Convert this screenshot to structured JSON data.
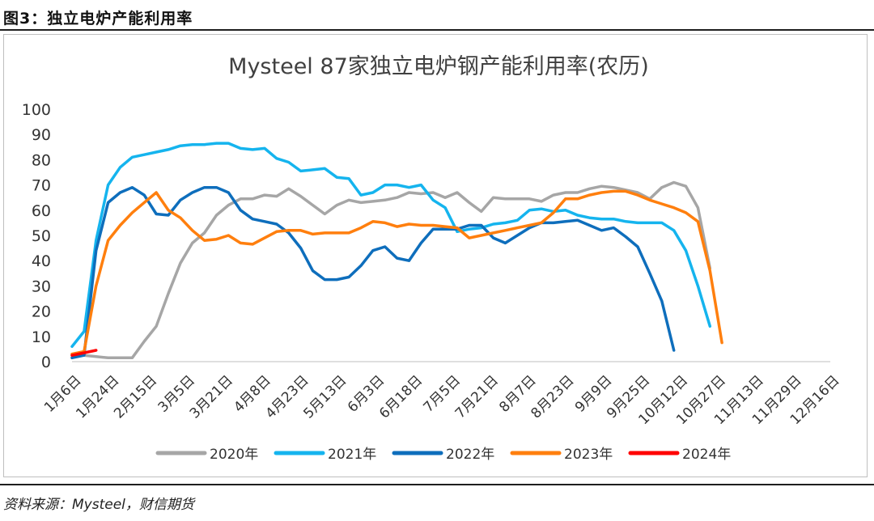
{
  "figure": {
    "caption": "图3：独立电炉产能利用率",
    "source": "资料来源：Mysteel，财信期货"
  },
  "colors": {
    "2020年": "#a6a6a6",
    "2021年": "#15b4ee",
    "2022年": "#0e6ebc",
    "2023年": "#ff7f0e",
    "2024年": "#ff0000"
  },
  "chart_data": {
    "type": "line",
    "title": "Mysteel 87家独立电炉钢产能利用率(农历)",
    "xlabel": "",
    "ylabel": "",
    "ylim": [
      0,
      100
    ],
    "yticks": [
      0,
      10,
      20,
      30,
      40,
      50,
      60,
      70,
      80,
      90,
      100
    ],
    "x_tick_labels": [
      "1月6日",
      "1月24日",
      "2月15日",
      "3月5日",
      "3月21日",
      "4月8日",
      "4月23日",
      "5月13日",
      "6月3日",
      "6月18日",
      "7月5日",
      "7月21日",
      "8月7日",
      "8月23日",
      "9月9日",
      "9月25日",
      "10月12日",
      "10月27日",
      "11月13日",
      "11月29日",
      "12月16日"
    ],
    "legend_position": "bottom",
    "grid": false,
    "x_count": 64,
    "series": [
      {
        "name": "2020年",
        "values": [
          2.5,
          2.5,
          2,
          1.5,
          1.5,
          1.5,
          8,
          14,
          27,
          39,
          47,
          51,
          58,
          62,
          64.5,
          64.5,
          66,
          65.5,
          68.5,
          65.5,
          62,
          58.5,
          62,
          64,
          63,
          63.5,
          64,
          65,
          67,
          66.5,
          67,
          65,
          67,
          63,
          59.5,
          65,
          64.5,
          64.5,
          64.5,
          63.5,
          66,
          67,
          67,
          68.5,
          69.5,
          69,
          68,
          67,
          64.5,
          69,
          71,
          69.5,
          61,
          37
        ]
      },
      {
        "name": "2021年",
        "values": [
          6,
          12,
          48,
          70,
          77,
          81,
          82,
          83,
          84,
          85.5,
          86,
          86,
          86.5,
          86.5,
          84.5,
          84,
          84.5,
          80.5,
          79,
          75.5,
          76,
          76.5,
          73,
          72.5,
          66,
          67,
          70,
          70,
          69,
          70,
          64,
          61,
          51.5,
          52.5,
          53,
          54.5,
          55,
          56,
          60,
          60.5,
          59.5,
          60,
          58,
          57,
          56.5,
          56.5,
          55.5,
          55,
          55,
          55,
          52,
          44,
          30,
          14
        ]
      },
      {
        "name": "2022年",
        "values": [
          1.5,
          2.5,
          44,
          63,
          67,
          69,
          66,
          58.5,
          58,
          64,
          67,
          69,
          69,
          67,
          60,
          56.5,
          55.5,
          54.5,
          51,
          45,
          36,
          32.5,
          32.5,
          33.5,
          38,
          44,
          45.5,
          41,
          40,
          47,
          52.5,
          52.5,
          52.5,
          54,
          54,
          49,
          47,
          50,
          53,
          55,
          55,
          55.5,
          56,
          54,
          52,
          53,
          49.5,
          45.5,
          35,
          24,
          4.5
        ]
      },
      {
        "name": "2023年",
        "values": [
          3,
          4,
          30,
          48,
          54,
          59,
          63,
          67,
          60,
          57,
          52,
          48,
          48.5,
          50,
          47,
          46.5,
          49,
          51.5,
          52,
          52,
          50.5,
          51,
          51,
          51,
          53,
          55.5,
          55,
          53.5,
          54.5,
          54,
          54,
          53.5,
          53,
          49,
          50,
          51,
          52,
          53,
          54,
          55,
          59,
          64.5,
          64.5,
          66,
          67,
          67.5,
          67.5,
          66,
          64,
          62.5,
          61,
          59,
          55.5,
          36,
          7.5
        ]
      },
      {
        "name": "2024年",
        "values": [
          2.5,
          3.5,
          4.5
        ]
      }
    ]
  }
}
